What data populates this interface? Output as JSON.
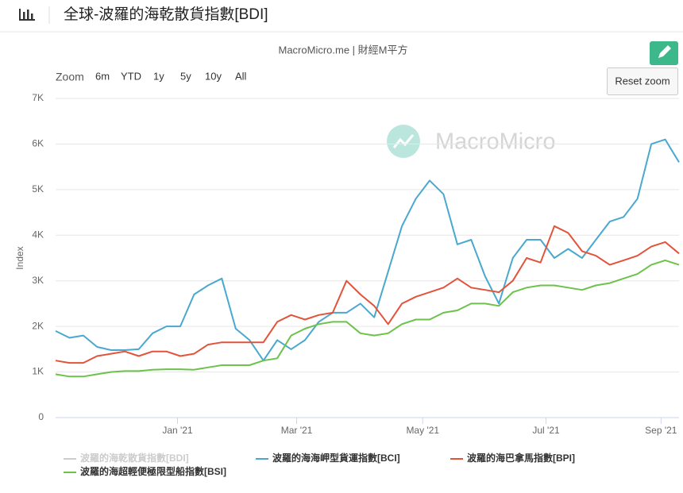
{
  "header": {
    "title": "全球-波羅的海乾散貨指數[BDI]"
  },
  "watermark": "MacroMicro",
  "toolbar": {
    "zoom_label": "Zoom",
    "buttons": [
      "6m",
      "YTD",
      "1y",
      "5y",
      "10y",
      "All"
    ],
    "reset": "Reset zoom"
  },
  "chart_data": {
    "type": "line",
    "subtitle": "MacroMicro.me | 財經M平方",
    "y_label": "Index",
    "x": [
      0,
      1,
      2,
      3,
      4,
      5,
      6,
      7,
      8,
      9,
      10,
      11,
      12,
      13,
      14,
      15,
      16,
      17,
      18,
      19,
      20,
      21,
      22,
      23,
      24,
      25,
      26,
      27,
      28,
      29,
      30,
      31,
      32,
      33,
      34,
      35,
      36,
      37,
      38,
      39,
      40,
      41,
      42,
      43,
      44,
      45
    ],
    "xlim": [
      0,
      45
    ],
    "xticks": [
      {
        "value": 8.8,
        "label": "Jan '21"
      },
      {
        "value": 17.4,
        "label": "Mar '21"
      },
      {
        "value": 26.5,
        "label": "May '21"
      },
      {
        "value": 35.4,
        "label": "Jul '21"
      },
      {
        "value": 43.7,
        "label": "Sep '21"
      }
    ],
    "ylim": [
      0,
      7000
    ],
    "yticks": [
      0,
      {
        "value": 1000,
        "label": "1K"
      },
      {
        "value": 2000,
        "label": "2K"
      },
      {
        "value": 3000,
        "label": "3K"
      },
      {
        "value": 4000,
        "label": "4K"
      },
      {
        "value": 5000,
        "label": "5K"
      },
      {
        "value": 6000,
        "label": "6K"
      },
      {
        "value": 7000,
        "label": "7K"
      }
    ],
    "grid": true,
    "series": [
      {
        "name": "波羅的海乾散貨指數[BDI]",
        "color": "#cccccc",
        "visible": false
      },
      {
        "name": "波羅的海海岬型貨運指數[BCI]",
        "color": "#4aa8d0",
        "values": [
          1900,
          1750,
          1800,
          1550,
          1480,
          1480,
          1500,
          1850,
          2000,
          2000,
          2700,
          2900,
          3050,
          1950,
          1700,
          1250,
          1700,
          1500,
          1700,
          2100,
          2300,
          2300,
          2500,
          2200,
          3200,
          4200,
          4800,
          5200,
          4900,
          3800,
          3900,
          3100,
          2500,
          3500,
          3900,
          3900,
          3500,
          3700,
          3500,
          3900,
          4300,
          4400,
          4800,
          6000,
          6100,
          5600
        ]
      },
      {
        "name": "波羅的海巴拿馬指數[BPI]",
        "color": "#e2533a",
        "values": [
          1250,
          1200,
          1200,
          1350,
          1400,
          1450,
          1350,
          1450,
          1450,
          1350,
          1400,
          1600,
          1650,
          1650,
          1650,
          1650,
          2100,
          2250,
          2150,
          2250,
          2300,
          3000,
          2700,
          2450,
          2050,
          2500,
          2650,
          2750,
          2850,
          3050,
          2850,
          2800,
          2750,
          3000,
          3500,
          3400,
          4200,
          4050,
          3650,
          3550,
          3350,
          3450,
          3550,
          3750,
          3850,
          3600
        ]
      },
      {
        "name": "波羅的海超輕便極限型船指數[BSI]",
        "color": "#6cc24a",
        "values": [
          950,
          900,
          900,
          950,
          1000,
          1020,
          1020,
          1050,
          1060,
          1060,
          1050,
          1100,
          1150,
          1150,
          1150,
          1250,
          1300,
          1800,
          1950,
          2050,
          2100,
          2100,
          1850,
          1800,
          1850,
          2050,
          2150,
          2150,
          2300,
          2350,
          2500,
          2500,
          2450,
          2750,
          2850,
          2900,
          2900,
          2850,
          2800,
          2900,
          2950,
          3050,
          3150,
          3350,
          3450,
          3350
        ]
      }
    ]
  }
}
